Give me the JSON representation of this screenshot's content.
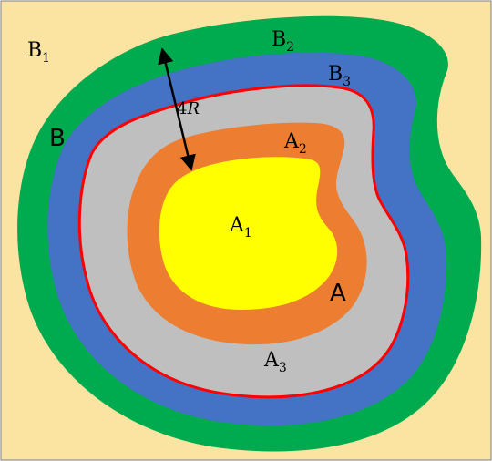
{
  "colors": {
    "background": "#fbe3a1",
    "region_b2": "#00aa4f",
    "region_b3": "#4472c4",
    "region_a3": "#bfbfbf",
    "boundary_a": "#ff0000",
    "region_a2": "#ed7d31",
    "region_a1": "#ffff00",
    "arrow": "#000000"
  },
  "labels": {
    "b1": {
      "base": "B",
      "sub": "1"
    },
    "b2": {
      "base": "B",
      "sub": "2"
    },
    "b3": {
      "base": "B",
      "sub": "3"
    },
    "b": "B",
    "a": "A",
    "a1": {
      "base": "A",
      "sub": "1"
    },
    "a2": {
      "base": "A",
      "sub": "2"
    },
    "a3": {
      "base": "A",
      "sub": "3"
    },
    "distance": {
      "num": "4",
      "sym": "R"
    }
  }
}
